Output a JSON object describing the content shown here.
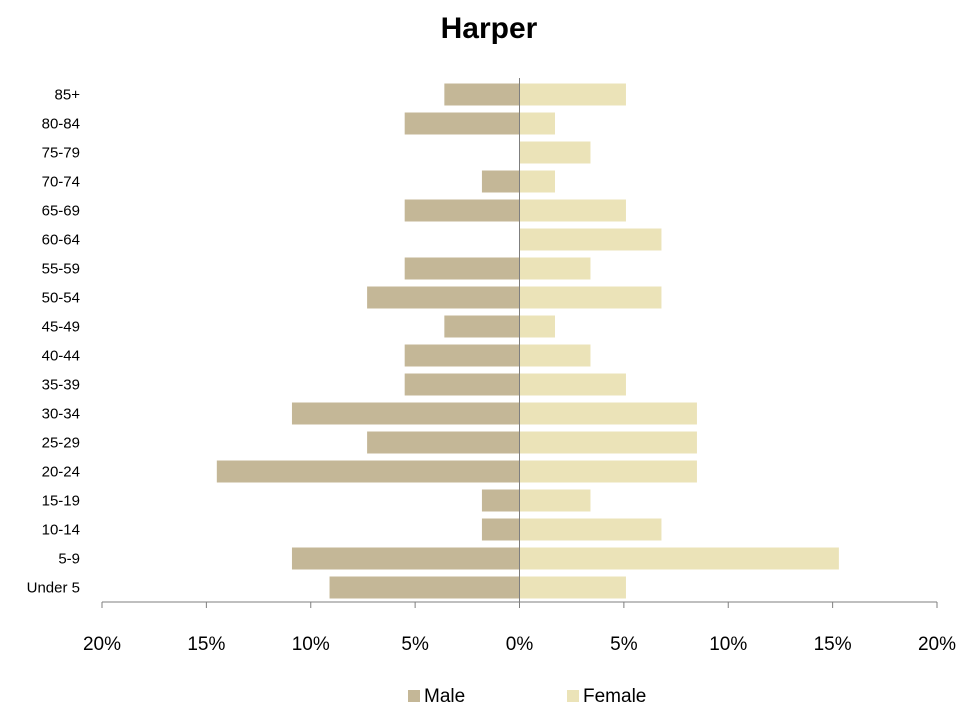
{
  "chart_data": {
    "type": "bar",
    "orientation": "horizontal",
    "title": "Harper",
    "categories": [
      "Under 5",
      "5-9",
      "10-14",
      "15-19",
      "20-24",
      "25-29",
      "30-34",
      "35-39",
      "40-44",
      "45-49",
      "50-54",
      "55-59",
      "60-64",
      "65-69",
      "70-74",
      "75-79",
      "80-84",
      "85+"
    ],
    "series": [
      {
        "name": "Male",
        "color": "#c4b797",
        "values": [
          9.1,
          10.9,
          1.8,
          1.8,
          14.5,
          7.3,
          10.9,
          5.5,
          5.5,
          3.6,
          7.3,
          5.5,
          0,
          5.5,
          1.8,
          0,
          5.5,
          3.6
        ]
      },
      {
        "name": "Female",
        "color": "#ebe3b8",
        "values": [
          5.1,
          15.3,
          6.8,
          3.4,
          8.5,
          8.5,
          8.5,
          5.1,
          3.4,
          1.7,
          6.8,
          3.4,
          6.8,
          5.1,
          1.7,
          3.4,
          1.7,
          5.1
        ]
      }
    ],
    "xlim": [
      -20,
      20
    ],
    "xticks": [
      -20,
      -15,
      -10,
      -5,
      0,
      5,
      10,
      15,
      20
    ],
    "xtick_labels": [
      "20%",
      "15%",
      "10%",
      "5%",
      "0%",
      "5%",
      "10%",
      "15%",
      "20%"
    ],
    "xlabel": "",
    "ylabel": "",
    "grid": false,
    "legend_position": "bottom"
  }
}
